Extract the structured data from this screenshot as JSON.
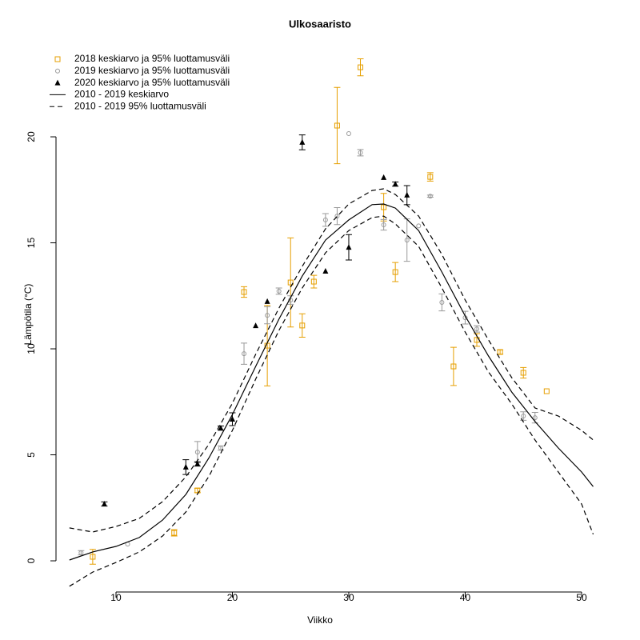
{
  "chart_data": {
    "type": "scatter",
    "title": "Ulkosaaristo",
    "x_label": "Viikko",
    "y_label": "Lämpötila (°C)",
    "xlim": [
      4.2,
      52.8
    ],
    "ylim": [
      -1.32,
      24.19
    ],
    "xticks": [
      10,
      20,
      30,
      40,
      50
    ],
    "yticks": [
      0,
      5,
      10,
      15,
      20
    ],
    "legend": "top-left",
    "series": [
      {
        "name": "2018 keskiarvo ja 95% luottamusväli",
        "style": "square",
        "color": "#E69F00",
        "x": [
          8,
          15,
          17,
          21,
          23,
          25,
          26,
          27,
          29,
          31,
          33,
          34,
          37,
          39,
          41,
          43,
          45,
          47
        ],
        "values": [
          0.19,
          1.32,
          3.32,
          12.68,
          10.15,
          13.13,
          11.1,
          13.17,
          20.53,
          23.28,
          16.68,
          13.62,
          18.11,
          9.17,
          10.42,
          9.85,
          8.87,
          8.0
        ],
        "errors": [
          0.35,
          0.15,
          0.1,
          0.25,
          1.9,
          2.1,
          0.55,
          0.3,
          1.8,
          0.4,
          0.65,
          0.45,
          0.2,
          0.9,
          0.3,
          0.1,
          0.25,
          null
        ]
      },
      {
        "name": "2019 keskiarvo ja 95% luottamusväli",
        "style": "circle",
        "color": "#999999",
        "x": [
          7,
          11,
          17,
          19,
          21,
          23,
          24,
          25,
          28,
          29,
          30,
          31,
          33,
          35,
          36,
          37,
          38,
          40,
          41,
          45,
          46
        ],
        "values": [
          0.38,
          0.79,
          5.13,
          5.32,
          9.77,
          11.58,
          12.72,
          12.3,
          16.08,
          16.26,
          20.15,
          19.25,
          15.85,
          15.13,
          15.8,
          17.2,
          12.19,
          11.47,
          10.94,
          6.83,
          6.75
        ],
        "errors": [
          0.1,
          null,
          0.5,
          0.1,
          0.5,
          0.4,
          0.15,
          0.2,
          0.3,
          0.4,
          null,
          0.15,
          0.25,
          1.0,
          null,
          0.05,
          0.4,
          0.3,
          0.15,
          0.2,
          0.25
        ]
      },
      {
        "name": "2020 keskiarvo ja 95% luottamusväli",
        "style": "triangle",
        "color": "#000000",
        "x": [
          9,
          16,
          17,
          19,
          20,
          22,
          23,
          26,
          28,
          30,
          33,
          34,
          35
        ],
        "values": [
          2.68,
          4.42,
          4.57,
          6.26,
          6.68,
          11.09,
          12.23,
          19.74,
          13.66,
          14.79,
          18.08,
          17.77,
          17.25
        ],
        "errors": [
          0.1,
          0.35,
          0.1,
          0.1,
          0.3,
          null,
          null,
          0.35,
          null,
          0.6,
          null,
          0.1,
          0.45
        ]
      },
      {
        "name": "2010 - 2019 keskiarvo",
        "style": "solid",
        "color": "#000000",
        "x": [
          6,
          8,
          10,
          12,
          14,
          16,
          18,
          20,
          22,
          24,
          26,
          28,
          30,
          32,
          33,
          34,
          36,
          38,
          40,
          42,
          44,
          46,
          48,
          50,
          51
        ],
        "values": [
          0.04,
          0.42,
          0.68,
          1.1,
          1.92,
          3.13,
          4.87,
          6.9,
          9.17,
          11.4,
          13.43,
          15.13,
          16.08,
          16.8,
          16.83,
          16.64,
          15.58,
          13.62,
          11.55,
          9.66,
          7.96,
          6.57,
          5.32,
          4.19,
          3.5
        ]
      },
      {
        "name": "2010 - 2019 95% luottamusväli",
        "style": "dashed",
        "color": "#000000",
        "x": [
          6,
          8,
          10,
          12,
          14,
          16,
          18,
          20,
          22,
          24,
          26,
          28,
          30,
          32,
          33,
          34,
          36,
          38,
          40,
          42,
          44,
          46,
          48,
          50,
          51
        ],
        "values": [
          1.55,
          1.36,
          1.62,
          2.0,
          2.79,
          3.96,
          5.51,
          7.43,
          9.74,
          11.92,
          13.89,
          15.66,
          16.83,
          17.47,
          17.55,
          17.28,
          16.26,
          14.45,
          12.3,
          10.42,
          8.64,
          7.21,
          6.83,
          6.15,
          5.7
        ],
        "lower": [
          -1.2,
          -0.53,
          -0.08,
          0.42,
          1.17,
          2.3,
          4.0,
          6.15,
          8.57,
          10.87,
          12.87,
          14.53,
          15.58,
          16.19,
          16.26,
          15.89,
          14.83,
          12.87,
          10.79,
          8.91,
          7.4,
          5.7,
          4.19,
          2.68,
          1.25
        ]
      }
    ]
  }
}
